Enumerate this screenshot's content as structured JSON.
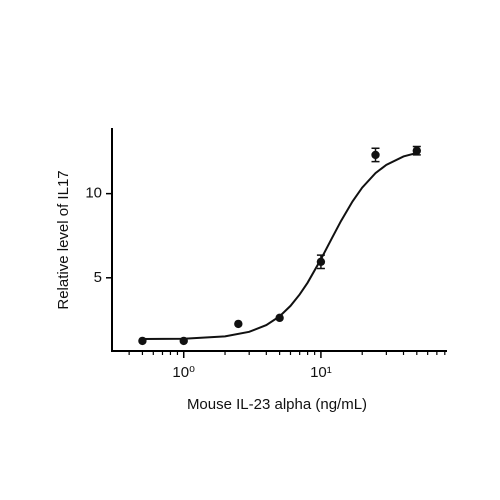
{
  "chart_data": {
    "type": "scatter",
    "x_label": "Mouse IL-23 alpha (ng/mL)",
    "y_label": "Relative level of IL17",
    "xscale": "log",
    "xlim": [
      0.3,
      83
    ],
    "ylim": [
      0.65,
      13.9
    ],
    "xticks": [
      {
        "value": 1,
        "label": "10⁰"
      },
      {
        "value": 10,
        "label": "10¹"
      }
    ],
    "xminorticks": [
      0.4,
      0.5,
      0.6,
      0.7,
      0.8,
      0.9,
      2,
      3,
      4,
      5,
      6,
      7,
      8,
      9,
      20,
      30,
      40,
      50,
      60,
      70,
      80
    ],
    "yticks": [
      5,
      10
    ],
    "color": "#111111",
    "x": [
      0.5,
      1,
      2.5,
      5,
      10,
      25,
      50
    ],
    "values": [
      1.25,
      1.25,
      2.26,
      2.62,
      5.95,
      12.3,
      12.55
    ],
    "errors": [
      null,
      null,
      null,
      null,
      0.4,
      0.4,
      0.25
    ],
    "curve": {
      "x": [
        0.5,
        1,
        2,
        3,
        4,
        5,
        6,
        7,
        8,
        10,
        12,
        14,
        17,
        20,
        25,
        30,
        40,
        50
      ],
      "values": [
        1.36,
        1.38,
        1.52,
        1.79,
        2.19,
        2.71,
        3.33,
        4.01,
        4.71,
        6.1,
        7.34,
        8.37,
        9.54,
        10.36,
        11.22,
        11.71,
        12.21,
        12.42
      ]
    }
  }
}
